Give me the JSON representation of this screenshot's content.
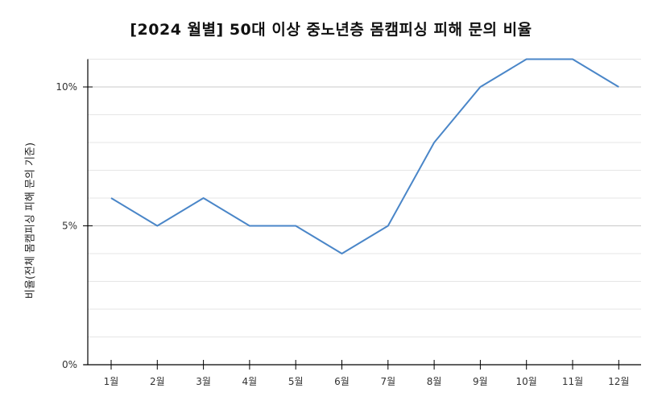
{
  "chart_data": {
    "type": "line",
    "title": "[2024 월별] 50대 이상 중노년층 몸캠피싱 피해 문의 비율",
    "xlabel": "",
    "ylabel": "비율(전체 몸캠피싱 피해 문의 기준)",
    "categories": [
      "1월",
      "2월",
      "3월",
      "4월",
      "5월",
      "6월",
      "7월",
      "8월",
      "9월",
      "10월",
      "11월",
      "12월"
    ],
    "series": [
      {
        "name": "비율",
        "values": [
          6,
          5,
          6,
          5,
          5,
          4,
          5,
          8,
          10,
          11,
          11,
          10
        ],
        "unit": "%",
        "color": "#4a86c8"
      }
    ],
    "yticks": [
      "0%",
      "5%",
      "10%"
    ],
    "ylim": [
      0,
      11
    ],
    "grid": {
      "major_every": 5,
      "minor_every": 1,
      "major_color": "#c8c8c8",
      "minor_color": "#e6e6e6"
    },
    "legend": "none"
  }
}
